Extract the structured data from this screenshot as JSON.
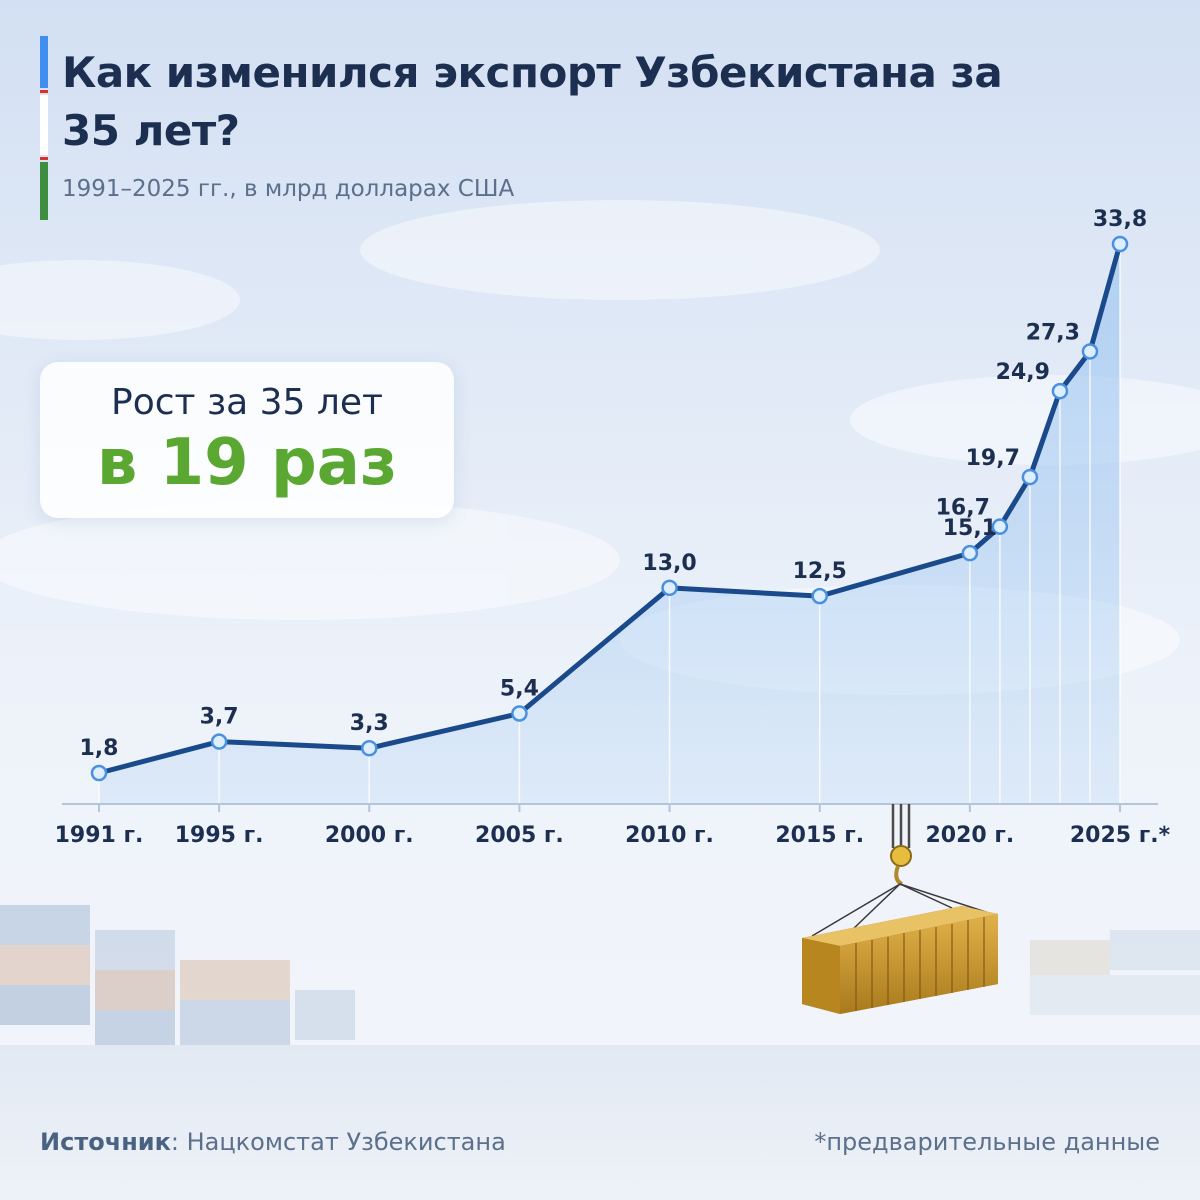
{
  "header": {
    "title": "Как изменился экспорт Узбекистана за 35 лет?",
    "subtitle": "1991–2025 гг., в млрд долларах США"
  },
  "growth_card": {
    "label": "Рост за 35 лет",
    "value": "в 19 раз"
  },
  "colors": {
    "line": "#1a4a8c",
    "area": "#a9ccf2",
    "title": "#1d2f50",
    "accent_green": "#5aa832",
    "flag_blue": "#3f8ef0",
    "flag_red": "#d93030",
    "flag_green": "#3e8e41",
    "container": "#c99a2e"
  },
  "chart_data": {
    "type": "area",
    "title": "Как изменился экспорт Узбекистана за 35 лет?",
    "subtitle": "1991–2025 гг., в млрд долларах США",
    "x": [
      1991,
      1995,
      2000,
      2005,
      2010,
      2015,
      2020,
      2021,
      2022,
      2023,
      2024,
      2025
    ],
    "values": [
      1.8,
      3.7,
      3.3,
      5.4,
      13.0,
      12.5,
      15.1,
      16.7,
      19.7,
      24.9,
      27.3,
      33.8
    ],
    "value_labels": [
      "1,8",
      "3,7",
      "3,3",
      "5,4",
      "13,0",
      "12,5",
      "15,1",
      "16,7",
      "19,7",
      "24,9",
      "27,3",
      "33,8"
    ],
    "tick_values": [
      1991,
      1995,
      2000,
      2005,
      2010,
      2015,
      2020,
      2025
    ],
    "tick_labels": [
      "1991 г.",
      "1995 г.",
      "2000 г.",
      "2005 г.",
      "2010 г.",
      "2015 г.",
      "2020 г.",
      "2025 г.*"
    ],
    "xlim": [
      1991,
      2025
    ],
    "ylim": [
      0,
      33.8
    ],
    "grid": false,
    "legend": "none"
  },
  "footer": {
    "source_label": "Источник",
    "source_text": ": Нацкомстат Узбекистана",
    "note": "*предварительные данные"
  }
}
